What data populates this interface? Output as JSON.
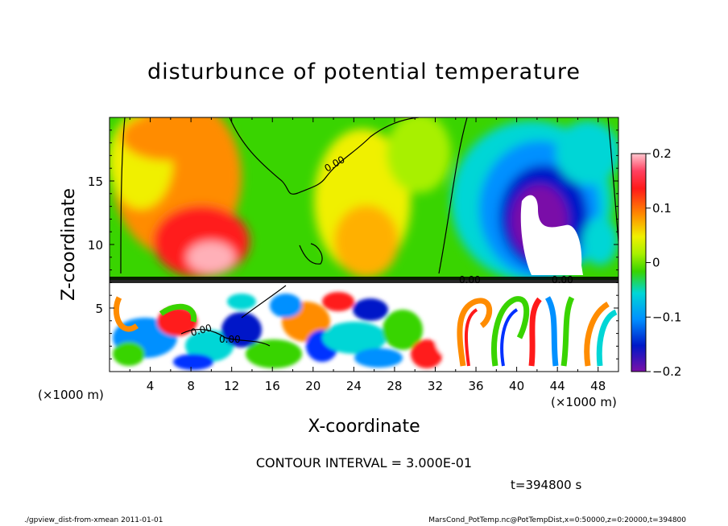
{
  "chart_data": {
    "type": "heatmap",
    "title": "disturbunce of potential temperature",
    "xlabel": "X-coordinate",
    "ylabel": "Z-coordinate",
    "x_unit": "(×1000 m)",
    "y_unit": "(×1000 m)",
    "xlim": [
      0,
      50
    ],
    "ylim": [
      0,
      20
    ],
    "x_ticks": [
      4,
      8,
      12,
      16,
      20,
      24,
      28,
      32,
      36,
      40,
      44,
      48
    ],
    "y_ticks": [
      5,
      10,
      15
    ],
    "colorbar": {
      "range": [
        -0.2,
        0.2
      ],
      "tick_labels": [
        "0.2",
        "0.1",
        "0",
        "−0.1",
        "−0.2"
      ],
      "tick_values": [
        0.2,
        0.1,
        0,
        -0.1,
        -0.2
      ]
    },
    "contour_interval_text": "CONTOUR INTERVAL = 3.000E-01",
    "contour_labels": [
      "0.00",
      "0.00",
      "0.00",
      "0.00",
      "0.00"
    ],
    "time_text": "t=394800 s",
    "colors": {
      "red": "#ff1a1a",
      "orange": "#ff8c00",
      "yellow": "#f0f000",
      "green": "#39d400",
      "cyan": "#00d6d6",
      "blue": "#0030ff",
      "purple": "#7a10a8"
    }
  },
  "footer": {
    "left": "./gpview_dist-from-xmean  2011-01-01",
    "right": "MarsCond_PotTemp.nc@PotTempDist,x=0:50000,z=0:20000,t=394800"
  }
}
